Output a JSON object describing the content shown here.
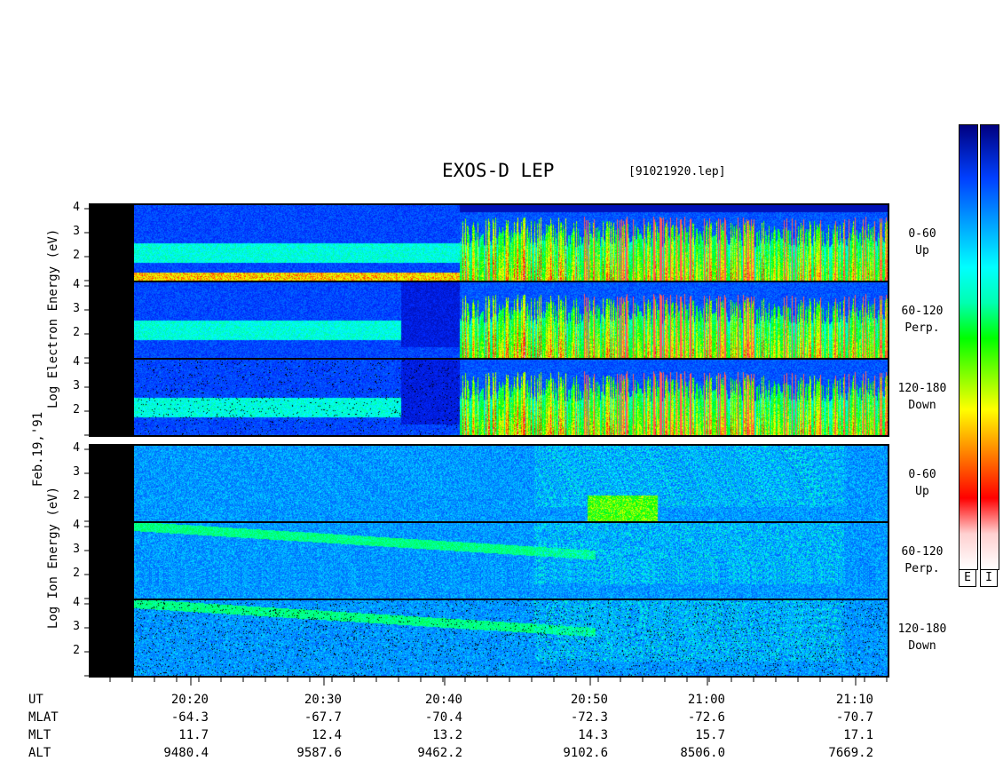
{
  "header": {
    "title": "EXOS-D LEP",
    "file_label": "[91021920.lep]"
  },
  "y_axis": {
    "date_label": "Feb.19,'91",
    "electron_label": "Log  Electron  Energy (eV)",
    "ion_label": "Log  Ion  Energy (eV)",
    "tick_labels": [
      "4",
      "3",
      "2"
    ]
  },
  "panels": [
    {
      "group": "electron",
      "label_line1": "0-60",
      "label_line2": "Up"
    },
    {
      "group": "electron",
      "label_line1": "60-120",
      "label_line2": "Perp."
    },
    {
      "group": "electron",
      "label_line1": "120-180",
      "label_line2": "Down"
    },
    {
      "group": "ion",
      "label_line1": "0-60",
      "label_line2": "Up"
    },
    {
      "group": "ion",
      "label_line1": "60-120",
      "label_line2": "Perp."
    },
    {
      "group": "ion",
      "label_line1": "120-180",
      "label_line2": "Down"
    }
  ],
  "ephemeris": {
    "row_labels": [
      "UT",
      "MLAT",
      "MLT",
      "ALT"
    ],
    "columns": [
      {
        "UT": "20:20",
        "MLAT": "-64.3",
        "MLT": "11.7",
        "ALT": "9480.4"
      },
      {
        "UT": "20:30",
        "MLAT": "-67.7",
        "MLT": "12.4",
        "ALT": "9587.6"
      },
      {
        "UT": "20:40",
        "MLAT": "-70.4",
        "MLT": "13.2",
        "ALT": "9462.2"
      },
      {
        "UT": "20:50",
        "MLAT": "-72.3",
        "MLT": "14.3",
        "ALT": "9102.6"
      },
      {
        "UT": "21:00",
        "MLAT": "-72.6",
        "MLT": "15.7",
        "ALT": "8506.0"
      },
      {
        "UT": "21:10",
        "MLAT": "-70.7",
        "MLT": "17.1",
        "ALT": "7669.2"
      }
    ]
  },
  "colorbar": {
    "labels": [
      "E",
      "I"
    ],
    "colors": [
      "#ffffff",
      "#ff0000",
      "#ff8000",
      "#ffff00",
      "#00ff00",
      "#00ffff",
      "#0060ff",
      "#000080"
    ]
  },
  "chart_data": {
    "type": "heatmap",
    "title": "EXOS-D LEP",
    "subtitle": "[91021920.lep]",
    "x_axis": {
      "tick_labels": [
        "20:20",
        "20:30",
        "20:40",
        "20:50",
        "21:00",
        "21:10"
      ],
      "range_minutes": [
        0,
        60
      ]
    },
    "y_axis": {
      "label_electron": "Log Electron Energy (eV)",
      "label_ion": "Log Ion Energy (eV)",
      "tick_labels": [
        "4",
        "3",
        "2"
      ],
      "range": [
        1,
        4.2
      ]
    },
    "series": [
      {
        "name": "0-60 Up",
        "group": "electron"
      },
      {
        "name": "60-120 Perp.",
        "group": "electron"
      },
      {
        "name": "120-180 Down",
        "group": "electron"
      },
      {
        "name": "0-60 Up",
        "group": "ion"
      },
      {
        "name": "60-120 Perp.",
        "group": "ion"
      },
      {
        "name": "120-180 Down",
        "group": "ion"
      }
    ],
    "legend": "right colorbar (E, I)"
  }
}
